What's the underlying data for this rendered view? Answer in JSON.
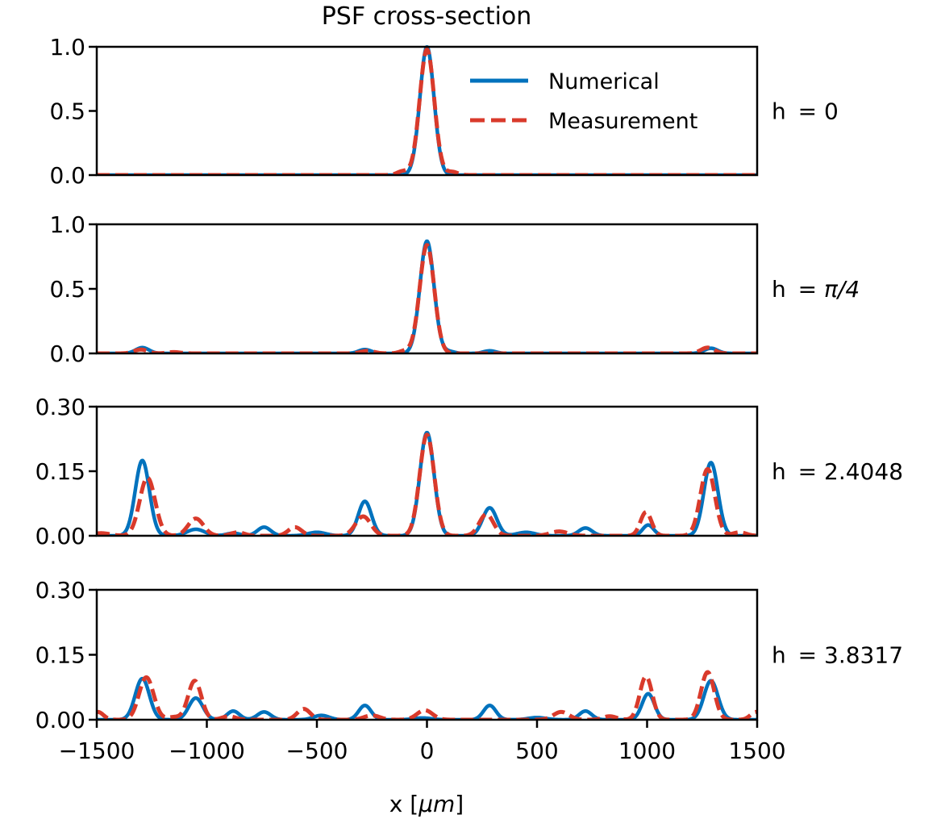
{
  "chart_data": {
    "type": "line",
    "title": "PSF cross-section",
    "xlabel": "x [μm]",
    "xlabel_prefix": "x [",
    "xlabel_unit": "μm",
    "xlabel_suffix": "]",
    "xlim": [
      -1500,
      1500
    ],
    "xticks": [
      -1500,
      -1000,
      -500,
      0,
      500,
      1000,
      1500
    ],
    "xtick_labels": [
      "−1500",
      "−1000",
      "−500",
      "0",
      "500",
      "1000",
      "1500"
    ],
    "legend": {
      "placement": "top-right of first panel",
      "entries": [
        {
          "label": "Numerical",
          "style": "solid",
          "color": "#0072bd"
        },
        {
          "label": "Measurement",
          "style": "dashed",
          "color": "#d73027"
        }
      ]
    },
    "colors": {
      "numerical": "#0072bd",
      "measurement": "#d93a2b",
      "axes": "#000000"
    },
    "panels": [
      {
        "label_prefix": "h ",
        "label_eq": "= ",
        "label_value": "0",
        "label_value_italic": false,
        "ylim": [
          0,
          1.0
        ],
        "yticks": [
          0.0,
          0.5,
          1.0
        ],
        "ytick_labels": [
          "0.0",
          "0.5",
          "1.0"
        ],
        "series": [
          {
            "name": "Numerical",
            "peaks": [
              [
                0,
                1.0,
                32
              ]
            ]
          },
          {
            "name": "Measurement",
            "peaks": [
              [
                0,
                0.98,
                33
              ],
              [
                -110,
                0.03,
                25
              ],
              [
                115,
                0.025,
                25
              ]
            ]
          }
        ]
      },
      {
        "label_prefix": "h ",
        "label_eq": "= ",
        "label_value": "π/4",
        "label_value_italic": true,
        "ylim": [
          0,
          1.0
        ],
        "yticks": [
          0.0,
          0.5,
          1.0
        ],
        "ytick_labels": [
          "0.0",
          "0.5",
          "1.0"
        ],
        "series": [
          {
            "name": "Numerical",
            "peaks": [
              [
                0,
                0.87,
                32
              ],
              [
                -1293,
                0.045,
                30
              ],
              [
                -282,
                0.03,
                28
              ],
              [
                285,
                0.02,
                28
              ],
              [
                1290,
                0.04,
                30
              ],
              [
                100,
                0.015,
                25
              ]
            ]
          },
          {
            "name": "Measurement",
            "peaks": [
              [
                0,
                0.84,
                33
              ],
              [
                -1300,
                0.03,
                30
              ],
              [
                -270,
                0.02,
                30
              ],
              [
                -100,
                0.02,
                25
              ],
              [
                1275,
                0.045,
                30
              ],
              [
                -1150,
                0.01,
                30
              ]
            ]
          }
        ]
      },
      {
        "label_prefix": "h ",
        "label_eq": "= ",
        "label_value": "2.4048",
        "label_value_italic": false,
        "ylim": [
          0,
          0.3
        ],
        "yticks": [
          0.0,
          0.15,
          0.3
        ],
        "ytick_labels": [
          "0.00",
          "0.15",
          "0.30"
        ],
        "series": [
          {
            "name": "Numerical",
            "peaks": [
              [
                0,
                0.24,
                32
              ],
              [
                -1293,
                0.175,
                32
              ],
              [
                1290,
                0.17,
                32
              ],
              [
                -282,
                0.08,
                30
              ],
              [
                285,
                0.065,
                32
              ],
              [
                -740,
                0.02,
                30
              ],
              [
                -1050,
                0.015,
                40
              ],
              [
                1005,
                0.025,
                25
              ],
              [
                720,
                0.018,
                30
              ],
              [
                -500,
                0.008,
                40
              ],
              [
                450,
                0.008,
                40
              ],
              [
                -880,
                0.006,
                30
              ]
            ]
          },
          {
            "name": "Measurement",
            "peaks": [
              [
                0,
                0.235,
                33
              ],
              [
                -1270,
                0.135,
                35
              ],
              [
                1275,
                0.155,
                33
              ],
              [
                -290,
                0.045,
                35
              ],
              [
                270,
                0.05,
                32
              ],
              [
                -1050,
                0.04,
                35
              ],
              [
                995,
                0.055,
                25
              ],
              [
                -600,
                0.02,
                30
              ],
              [
                -860,
                0.008,
                30
              ],
              [
                600,
                0.01,
                40
              ],
              [
                -1480,
                0.006,
                40
              ],
              [
                1420,
                0.008,
                30
              ]
            ]
          }
        ]
      },
      {
        "label_prefix": "h ",
        "label_eq": "= ",
        "label_value": "3.8317",
        "label_value_italic": false,
        "ylim": [
          0,
          0.3
        ],
        "yticks": [
          0.0,
          0.15,
          0.3
        ],
        "ytick_labels": [
          "0.00",
          "0.15",
          "0.30"
        ],
        "series": [
          {
            "name": "Numerical",
            "peaks": [
              [
                -1293,
                0.095,
                32
              ],
              [
                -1050,
                0.05,
                32
              ],
              [
                -880,
                0.02,
                28
              ],
              [
                -740,
                0.018,
                30
              ],
              [
                -480,
                0.01,
                35
              ],
              [
                -282,
                0.033,
                28
              ],
              [
                285,
                0.033,
                28
              ],
              [
                720,
                0.02,
                28
              ],
              [
                1005,
                0.06,
                28
              ],
              [
                1290,
                0.09,
                32
              ],
              [
                500,
                0.005,
                40
              ],
              [
                -20,
                0.004,
                40
              ]
            ]
          },
          {
            "name": "Measurement",
            "peaks": [
              [
                -1275,
                0.098,
                33
              ],
              [
                -1055,
                0.09,
                30
              ],
              [
                -560,
                0.025,
                30
              ],
              [
                -10,
                0.022,
                35
              ],
              [
                610,
                0.018,
                35
              ],
              [
                995,
                0.1,
                28
              ],
              [
                1275,
                0.11,
                30
              ],
              [
                -1495,
                0.018,
                25
              ],
              [
                1495,
                0.018,
                25
              ],
              [
                -900,
                0.008,
                30
              ],
              [
                830,
                0.008,
                30
              ],
              [
                -250,
                0.01,
                35
              ],
              [
                -1150,
                0.006,
                30
              ]
            ]
          }
        ]
      }
    ]
  }
}
